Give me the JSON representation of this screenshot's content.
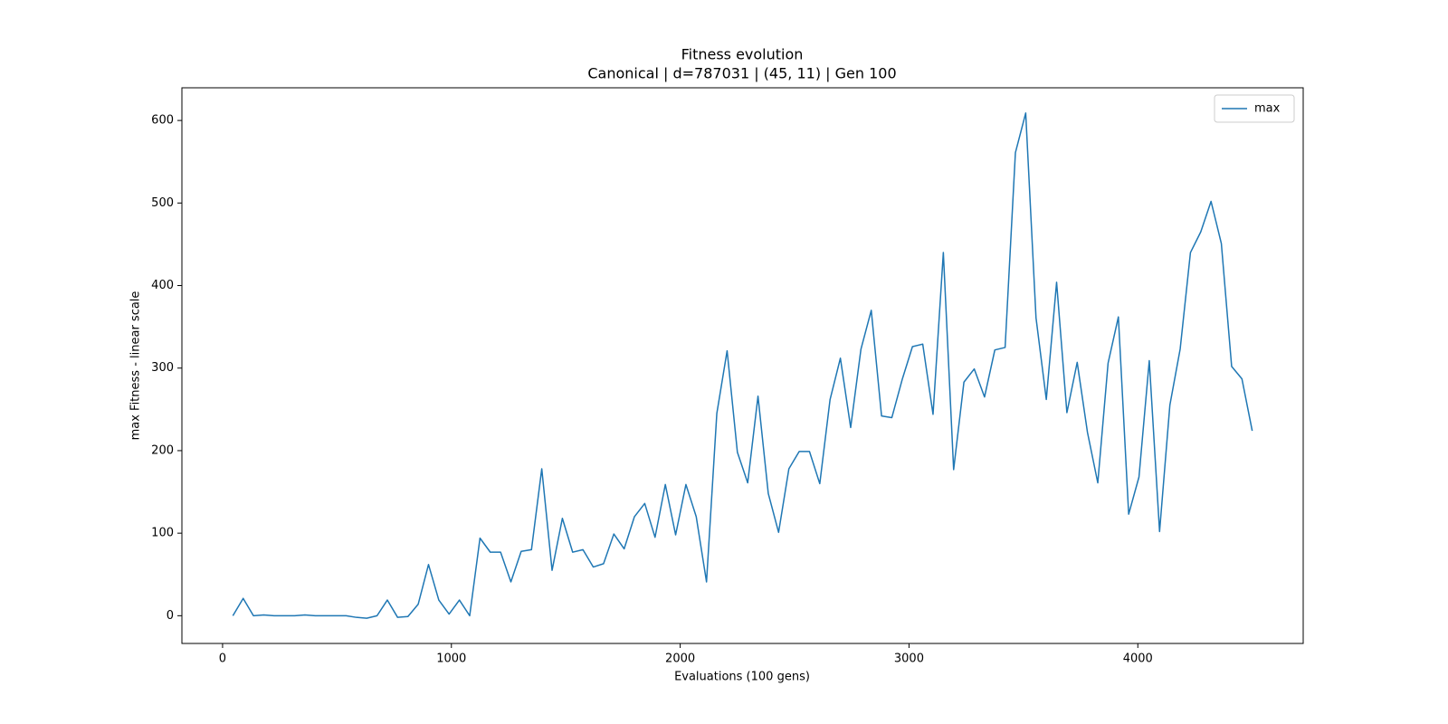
{
  "chart_data": {
    "type": "line",
    "title": "Fitness evolution",
    "subtitle": "Canonical | d=787031 | (45, 11) | Gen 100",
    "x_label": "Evaluations (100 gens)",
    "y_label": "max Fitness - linear scale",
    "x": [
      45,
      90,
      135,
      180,
      225,
      270,
      315,
      360,
      405,
      450,
      495,
      540,
      585,
      630,
      675,
      720,
      765,
      810,
      855,
      900,
      945,
      990,
      1035,
      1080,
      1125,
      1170,
      1215,
      1260,
      1305,
      1350,
      1395,
      1440,
      1485,
      1530,
      1575,
      1620,
      1665,
      1710,
      1755,
      1800,
      1845,
      1890,
      1935,
      1980,
      2025,
      2070,
      2115,
      2160,
      2205,
      2250,
      2295,
      2340,
      2385,
      2430,
      2475,
      2520,
      2565,
      2610,
      2655,
      2700,
      2745,
      2790,
      2835,
      2880,
      2925,
      2970,
      3015,
      3060,
      3105,
      3150,
      3195,
      3240,
      3285,
      3330,
      3375,
      3420,
      3465,
      3510,
      3555,
      3600,
      3645,
      3690,
      3735,
      3780,
      3825,
      3870,
      3915,
      3960,
      4005,
      4050,
      4095,
      4140,
      4185,
      4230,
      4275,
      4320,
      4365,
      4410,
      4455,
      4500
    ],
    "series": [
      {
        "name": "max",
        "color": "#1f77b4",
        "values": [
          0,
          21,
          0,
          1,
          0,
          0,
          0,
          1,
          0,
          0,
          0,
          0,
          -2,
          -3,
          0,
          19,
          -2,
          -1,
          14,
          62,
          19,
          2,
          19,
          0,
          94,
          77,
          77,
          41,
          78,
          80,
          178,
          55,
          118,
          77,
          80,
          59,
          63,
          99,
          81,
          120,
          136,
          95,
          159,
          98,
          159,
          120,
          41,
          245,
          321,
          198,
          161,
          266,
          148,
          101,
          178,
          199,
          199,
          160,
          262,
          312,
          228,
          323,
          370,
          242,
          240,
          286,
          326,
          329,
          244,
          440,
          177,
          283,
          299,
          265,
          322,
          325,
          561,
          609,
          361,
          262,
          404,
          246,
          307,
          222,
          161,
          306,
          362,
          123,
          168,
          309,
          102,
          255,
          323,
          440,
          465,
          502,
          451,
          302,
          287,
          224
        ]
      }
    ],
    "xlim": [
      -177.75,
      4722.75
    ],
    "ylim": [
      -33.6,
      639.6
    ],
    "xticks": [
      0,
      1000,
      2000,
      3000,
      4000
    ],
    "yticks": [
      0,
      100,
      200,
      300,
      400,
      500,
      600
    ],
    "legend": "upper right"
  }
}
